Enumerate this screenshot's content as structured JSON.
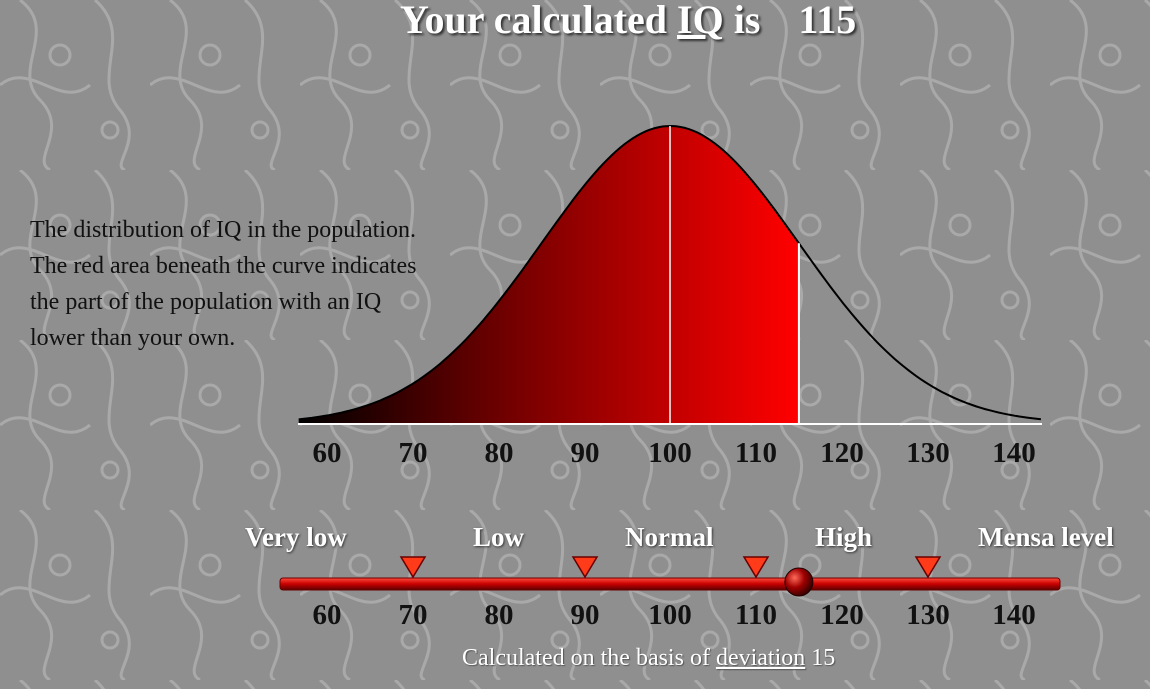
{
  "header": {
    "prefix": "Your calculated",
    "iq_link": "IQ",
    "suffix": "is",
    "score": "115"
  },
  "description": {
    "lines": [
      "The distribution of IQ in the population.",
      "The red area beneath the curve indicates",
      "the part of the population with an IQ",
      "lower than your own."
    ]
  },
  "curve_axis": {
    "ticks": [
      "60",
      "70",
      "80",
      "90",
      "100",
      "110",
      "120",
      "130",
      "140"
    ]
  },
  "scale": {
    "categories": [
      "Very low",
      "Low",
      "Normal",
      "High",
      "Mensa level"
    ],
    "ticks": [
      "60",
      "70",
      "80",
      "90",
      "100",
      "110",
      "120",
      "130",
      "140"
    ],
    "marker_value": 115
  },
  "footer": {
    "prefix": "Calculated on the basis of",
    "link": "deviation",
    "value": "15"
  },
  "colors": {
    "background": "#8f8f8f",
    "fill_dark": "#000000",
    "fill_bright": "#ff0000",
    "marker": "#ff3b1a"
  }
}
